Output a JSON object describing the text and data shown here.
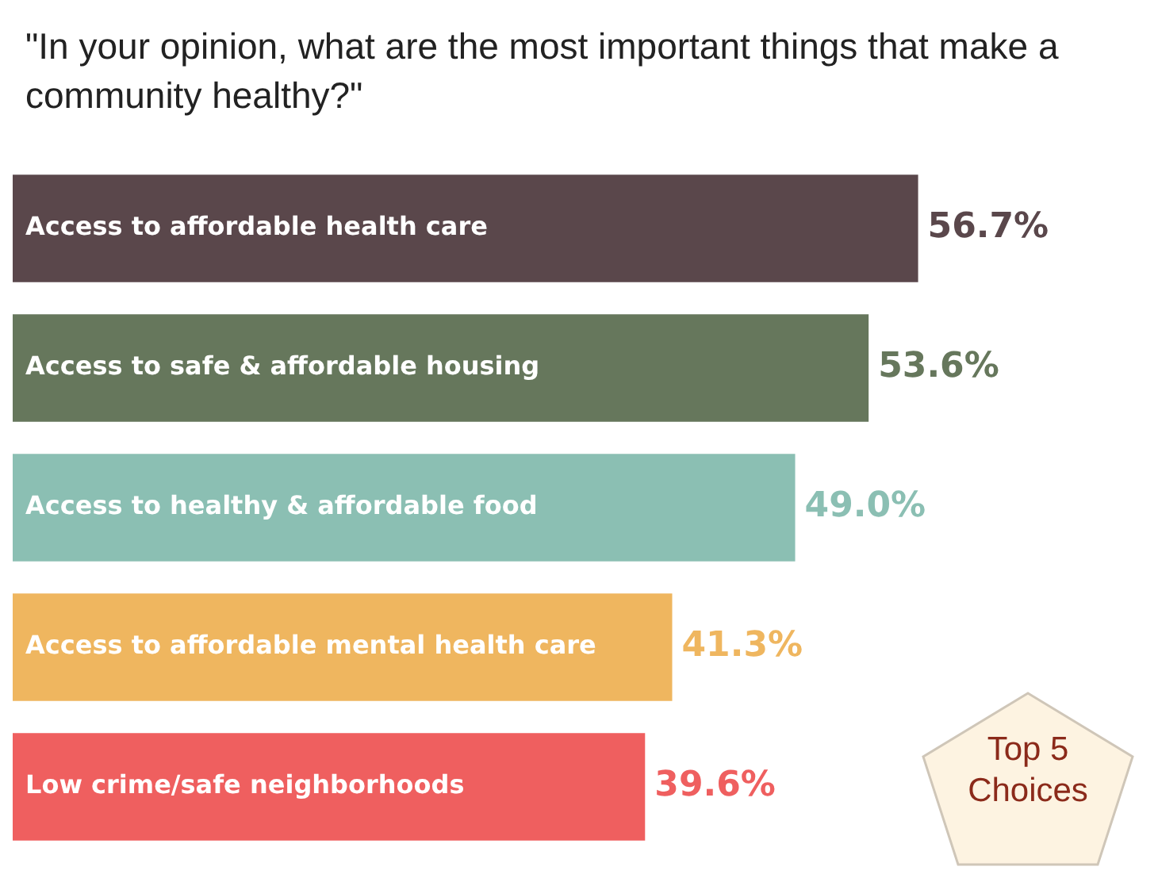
{
  "chart_data": {
    "type": "bar",
    "orientation": "horizontal",
    "title": "\"In your opinion, what are the most important things that make a community healthy?\"",
    "categories": [
      "Access to affordable health care",
      "Access to safe & affordable housing",
      "Access to healthy & affordable food",
      "Access to affordable mental health care",
      "Low crime/safe neighborhoods"
    ],
    "values": [
      56.7,
      53.6,
      49.0,
      41.3,
      39.6
    ],
    "value_labels": [
      "56.7%",
      "53.6%",
      "49.0%",
      "41.3%",
      "39.6%"
    ],
    "colors": [
      "#5a474b",
      "#66775c",
      "#8bbfb3",
      "#efb65f",
      "#ef5f5f"
    ],
    "annotations": [
      "Top 5 Choices"
    ]
  }
}
